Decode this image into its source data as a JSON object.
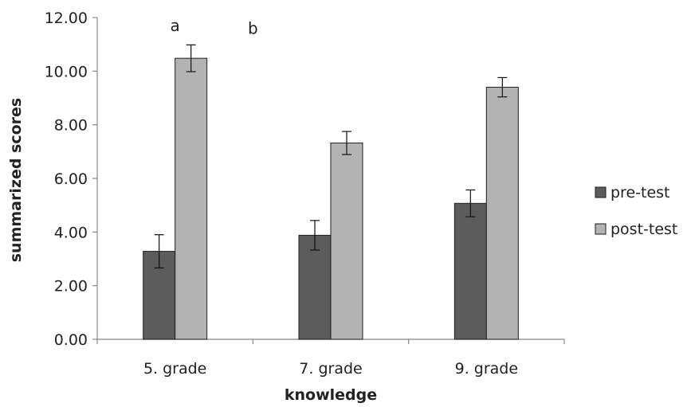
{
  "chart_data": {
    "type": "bar",
    "title": "",
    "xlabel": "knowledge",
    "ylabel": "summarized scores",
    "ylim": [
      0,
      12
    ],
    "yticks": [
      "0.00",
      "2.00",
      "4.00",
      "6.00",
      "8.00",
      "10.00",
      "12.00"
    ],
    "categories": [
      "5. grade",
      "7. grade",
      "9. grade"
    ],
    "series": [
      {
        "name": "pre-test",
        "values": [
          3.28,
          3.88,
          5.07
        ],
        "errors": [
          0.62,
          0.55,
          0.5
        ],
        "color": "#5c5c5c"
      },
      {
        "name": "post-test",
        "values": [
          10.48,
          7.32,
          9.4
        ],
        "errors": [
          0.5,
          0.43,
          0.36
        ],
        "color": "#b3b3b3"
      }
    ],
    "annotations": [
      {
        "text": "a",
        "category": 1,
        "value": 11.7
      },
      {
        "text": "b",
        "category": 1.5,
        "value": 11.6
      }
    ],
    "legend_position": "right",
    "grid": false
  }
}
